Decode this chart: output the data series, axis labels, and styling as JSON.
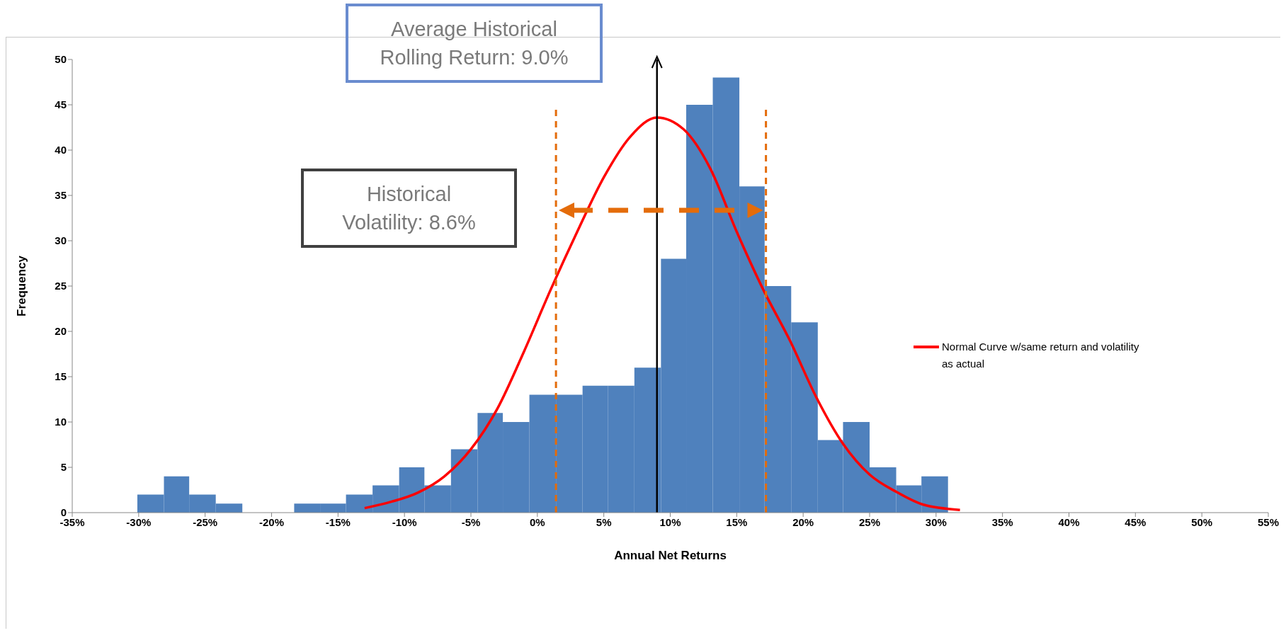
{
  "chart_data": {
    "type": "histogram",
    "xlabel": "Annual Net Returns",
    "ylabel": "Frequency",
    "bins": [
      -30.1,
      -28.1,
      -26.2,
      -24.2,
      -22.2,
      -18.3,
      -16.3,
      -14.4,
      -12.4,
      -10.4,
      -8.5,
      -6.5,
      -4.5,
      -2.6,
      -0.6,
      1.4,
      3.4,
      5.3,
      7.3,
      9.3,
      11.2,
      13.2,
      15.2,
      17.1,
      19.1,
      21.1,
      23.0,
      25.0,
      27.0,
      28.9,
      30.9
    ],
    "series": [
      {
        "color": "#4f81bd",
        "values": [
          2,
          4,
          2,
          1,
          0,
          1,
          1,
          2,
          3,
          5,
          3,
          7,
          11,
          10,
          13,
          13,
          14,
          14,
          16,
          28,
          45,
          48,
          36,
          25,
          21,
          8,
          10,
          5,
          3,
          4
        ]
      },
      {
        "type": "line",
        "name": "Normal Curve w/same return and volatility as actual",
        "color": "#ff0000",
        "marker": "none",
        "x": [
          -13,
          -11,
          -9,
          -7,
          -5,
          -3,
          -1,
          1,
          3,
          5,
          7,
          9,
          11,
          13,
          15,
          17,
          19,
          21,
          23,
          25,
          27,
          29,
          31.8
        ],
        "values": [
          0.5,
          1.2,
          2.2,
          4,
          7,
          11.5,
          17.8,
          24.6,
          31,
          37,
          41.5,
          43.6,
          42.3,
          38,
          31,
          24.6,
          19,
          12.7,
          7.6,
          4.2,
          2.3,
          0.9,
          0.3
        ]
      }
    ],
    "xlim": [
      -35,
      55
    ],
    "xticks": [
      {
        "value": -35,
        "label": "-35%"
      },
      {
        "value": -30,
        "label": "-30%"
      },
      {
        "value": -25,
        "label": "-25%"
      },
      {
        "value": -20,
        "label": "-20%"
      },
      {
        "value": -15,
        "label": "-15%"
      },
      {
        "value": -10,
        "label": "-10%"
      },
      {
        "value": -5,
        "label": "-5%"
      },
      {
        "value": 0,
        "label": "0%"
      },
      {
        "value": 5,
        "label": "5%"
      },
      {
        "value": 10,
        "label": "10%"
      },
      {
        "value": 15,
        "label": "15%"
      },
      {
        "value": 20,
        "label": "20%"
      },
      {
        "value": 25,
        "label": "25%"
      },
      {
        "value": 30,
        "label": "30%"
      },
      {
        "value": 35,
        "label": "35%"
      },
      {
        "value": 40,
        "label": "40%"
      },
      {
        "value": 45,
        "label": "45%"
      },
      {
        "value": 50,
        "label": "50%"
      },
      {
        "value": 55,
        "label": "55%"
      }
    ],
    "ylim": [
      0,
      50
    ],
    "yticks": [
      0,
      5,
      10,
      15,
      20,
      25,
      30,
      35,
      40,
      45,
      50
    ],
    "ref_lines": [
      {
        "axis": "x",
        "value": 9,
        "color": "#000000",
        "line_style": "solid"
      },
      {
        "axis": "x",
        "value": 1.4,
        "color": "#e46c0a",
        "line_style": "dashed"
      },
      {
        "axis": "x",
        "value": 17.2,
        "color": "#e46c0a",
        "line_style": "dashed"
      }
    ],
    "annotations": [
      "Average Historical\nRolling Return: 9.0%",
      "Historical\nVolatility: 8.6%"
    ],
    "grid": false,
    "legend": "right"
  }
}
